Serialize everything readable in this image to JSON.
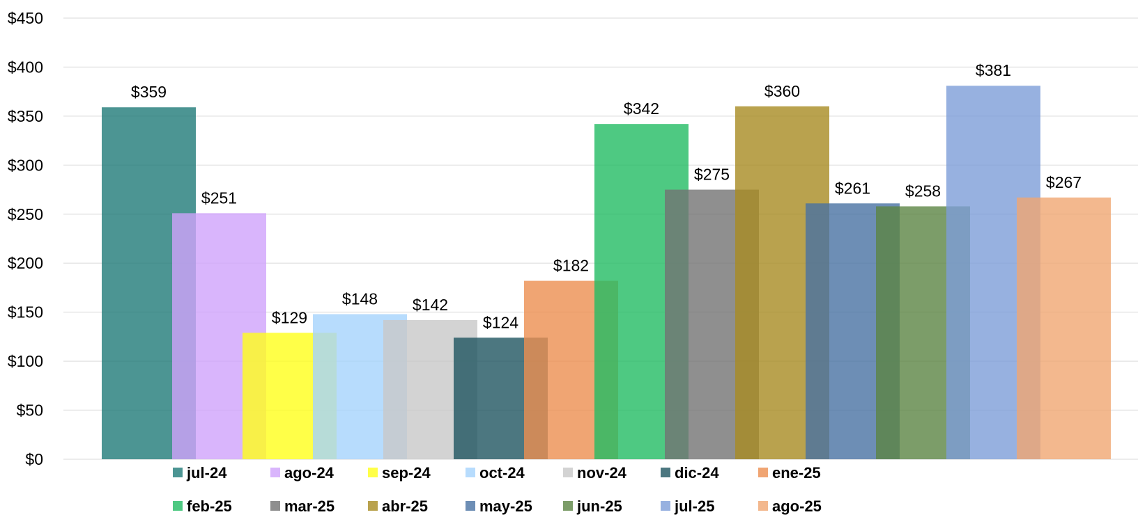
{
  "chart_data": {
    "type": "bar",
    "title": "",
    "xlabel": "",
    "ylabel": "",
    "ylim": [
      0,
      450
    ],
    "y_ticks": [
      0,
      50,
      100,
      150,
      200,
      250,
      300,
      350,
      400,
      450
    ],
    "y_tick_labels": [
      "$0",
      "$50",
      "$100",
      "$150",
      "$200",
      "$250",
      "$300",
      "$350",
      "$400",
      "$450"
    ],
    "grid": "horizontal",
    "legend_position": "bottom",
    "overlapping_bars": true,
    "categories": [
      "jul-24",
      "ago-24",
      "sep-24",
      "oct-24",
      "nov-24",
      "dic-24",
      "ene-25",
      "feb-25",
      "mar-25",
      "abr-25",
      "may-25",
      "jun-25",
      "jul-25",
      "ago-25"
    ],
    "values": [
      359,
      251,
      129,
      148,
      142,
      124,
      182,
      342,
      275,
      360,
      261,
      258,
      381,
      267
    ],
    "data_labels": [
      "$359",
      "$251",
      "$129",
      "$148",
      "$142",
      "$124",
      "$182",
      "$342",
      "$275",
      "$360",
      "$261",
      "$258",
      "$381",
      "$267"
    ],
    "colors": [
      "#1f7a78",
      "#cfa3fb",
      "#ffff1a",
      "#a5d3fc",
      "#c8c8c8",
      "#1f5560",
      "#ec8f50",
      "#22bb63",
      "#737373",
      "#a88b22",
      "#4872a2",
      "#5b8544",
      "#7d9ed8",
      "#f0a672"
    ]
  }
}
